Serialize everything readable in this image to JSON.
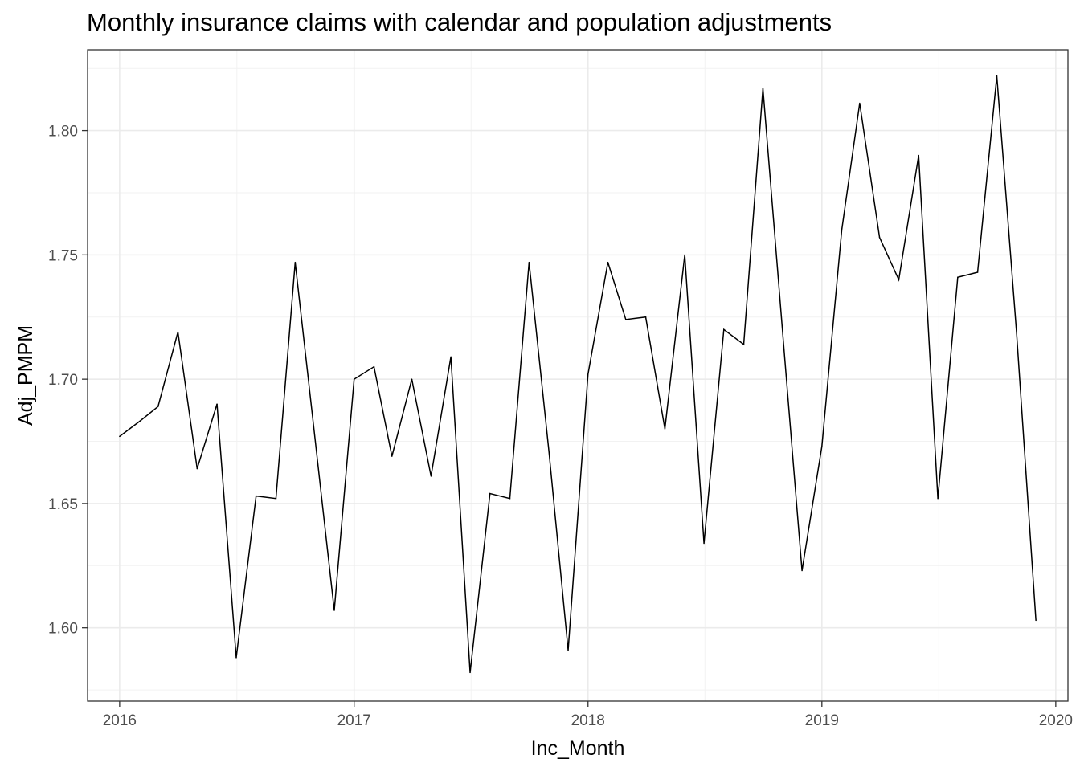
{
  "chart_data": {
    "type": "line",
    "title": "Monthly insurance claims with calendar and population adjustments",
    "xlabel": "Inc_Month",
    "ylabel": "Adj_PMPM",
    "x_ticks": [
      "2016",
      "2017",
      "2018",
      "2019",
      "2020"
    ],
    "y_ticks": [
      "1.60",
      "1.65",
      "1.70",
      "1.75",
      "1.80"
    ],
    "xlim": [
      "2015-11-12",
      "2020-01-20"
    ],
    "ylim": [
      1.5705,
      1.8325
    ],
    "grid": true,
    "legend": "none",
    "line_color": "#000000",
    "series": [
      {
        "x": [
          "2016-01",
          "2016-02",
          "2016-03",
          "2016-04",
          "2016-05",
          "2016-06",
          "2016-07",
          "2016-08",
          "2016-09",
          "2016-10",
          "2016-11",
          "2016-12",
          "2017-01",
          "2017-02",
          "2017-03",
          "2017-04",
          "2017-05",
          "2017-06",
          "2017-07",
          "2017-08",
          "2017-09",
          "2017-10",
          "2017-11",
          "2017-12",
          "2018-01",
          "2018-02",
          "2018-03",
          "2018-04",
          "2018-05",
          "2018-06",
          "2018-07",
          "2018-08",
          "2018-09",
          "2018-10",
          "2018-11",
          "2018-12",
          "2019-01",
          "2019-02",
          "2019-03",
          "2019-04",
          "2019-05",
          "2019-06",
          "2019-07",
          "2019-08",
          "2019-09",
          "2019-10",
          "2019-11",
          "2019-12"
        ],
        "values": [
          1.677,
          1.683,
          1.689,
          1.719,
          1.664,
          1.69,
          1.588,
          1.653,
          1.652,
          1.747,
          1.676,
          1.607,
          1.7,
          1.705,
          1.669,
          1.7,
          1.661,
          1.709,
          1.582,
          1.654,
          1.652,
          1.747,
          1.671,
          1.591,
          1.702,
          1.747,
          1.724,
          1.725,
          1.68,
          1.75,
          1.634,
          1.72,
          1.714,
          1.817,
          1.718,
          1.623,
          1.673,
          1.76,
          1.811,
          1.757,
          1.74,
          1.79,
          1.652,
          1.741,
          1.743,
          1.822,
          1.718,
          1.603
        ]
      }
    ]
  }
}
